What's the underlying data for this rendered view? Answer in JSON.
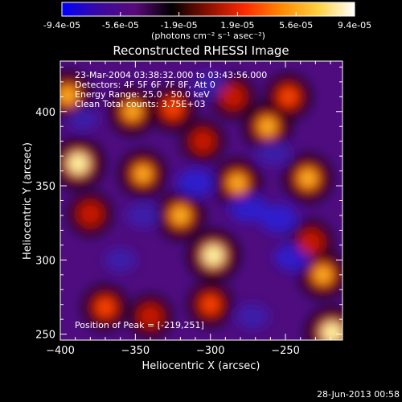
{
  "colorbar": {
    "tick_labels": [
      "-9.4e-05",
      "-5.6e-05",
      "-1.9e-05",
      "1.9e-05",
      "5.6e-05",
      "9.4e-05"
    ],
    "units": "(photons cm⁻² s⁻¹ asec⁻²)",
    "stops": [
      "#0000ff",
      "#3a0aa0",
      "#5a0a78",
      "#000000",
      "#8a1000",
      "#ff2a00",
      "#ff8a00",
      "#ffd040",
      "#ffffff"
    ]
  },
  "footer": {
    "timestamp": "28-Jun-2013 00:58"
  },
  "chart_data": {
    "type": "heatmap",
    "title": "Reconstructed RHESSI Image",
    "xlabel": "Heliocentric X (arcsec)",
    "ylabel": "Heliocentric Y (arcsec)",
    "xlim": [
      -400,
      -212
    ],
    "ylim": [
      246,
      434
    ],
    "xticks": [
      -400,
      -350,
      -300,
      -250
    ],
    "yticks": [
      250,
      300,
      350,
      400
    ],
    "annotations": [
      "23-Mar-2004 03:38:32.000 to 03:43:56.000",
      "Detectors: 4F 5F 6F 7F 8F, Att 0",
      "Energy Range: 25.0 - 50.0 keV",
      "Clean    Total counts: 3.75E+03"
    ],
    "peak_label": "Position of Peak = [-219,251]",
    "peak_position": [
      -219,
      251
    ],
    "hot_spots": [
      {
        "x": -388,
        "y": 365,
        "v": 1.0
      },
      {
        "x": -395,
        "y": 411,
        "v": 0.75
      },
      {
        "x": -380,
        "y": 331,
        "v": 0.5
      },
      {
        "x": -370,
        "y": 268,
        "v": 0.6
      },
      {
        "x": -352,
        "y": 400,
        "v": 0.7
      },
      {
        "x": -345,
        "y": 358,
        "v": 0.7
      },
      {
        "x": -325,
        "y": 402,
        "v": 0.6
      },
      {
        "x": -320,
        "y": 330,
        "v": 0.8
      },
      {
        "x": -305,
        "y": 380,
        "v": 0.45
      },
      {
        "x": -298,
        "y": 303,
        "v": 1.0
      },
      {
        "x": -300,
        "y": 270,
        "v": 0.55
      },
      {
        "x": -282,
        "y": 352,
        "v": 0.75
      },
      {
        "x": -285,
        "y": 410,
        "v": 0.5
      },
      {
        "x": -262,
        "y": 390,
        "v": 0.75
      },
      {
        "x": -248,
        "y": 410,
        "v": 0.6
      },
      {
        "x": -235,
        "y": 355,
        "v": 0.8
      },
      {
        "x": -225,
        "y": 290,
        "v": 0.75
      },
      {
        "x": -233,
        "y": 312,
        "v": 0.5
      },
      {
        "x": -219,
        "y": 251,
        "v": 1.0
      },
      {
        "x": -340,
        "y": 262,
        "v": 0.45
      }
    ],
    "cool_spots": [
      {
        "x": -310,
        "y": 352,
        "v": 0.9
      },
      {
        "x": -275,
        "y": 335,
        "v": 0.9
      },
      {
        "x": -255,
        "y": 328,
        "v": 1.0
      },
      {
        "x": -245,
        "y": 302,
        "v": 0.85
      },
      {
        "x": -300,
        "y": 418,
        "v": 0.7
      },
      {
        "x": -345,
        "y": 330,
        "v": 0.6
      },
      {
        "x": -360,
        "y": 300,
        "v": 0.5
      },
      {
        "x": -272,
        "y": 262,
        "v": 0.6
      },
      {
        "x": -385,
        "y": 395,
        "v": 0.4
      },
      {
        "x": -258,
        "y": 372,
        "v": 0.6
      }
    ]
  }
}
